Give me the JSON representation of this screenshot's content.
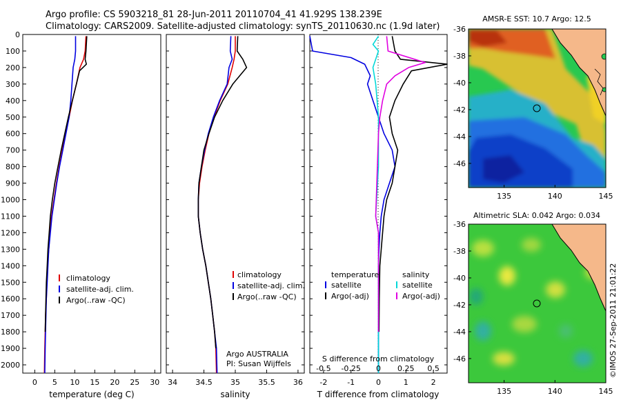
{
  "header": {
    "line1": "Argo profile: CS 5903218_81 28-Jun-2011 20110704_41 41.929S 138.239E",
    "line2": "Climatology: CARS2009. Satellite-adjusted climatology: synTS_20110630.nc (1.9d later)"
  },
  "depth_ticks": [
    "0",
    "100",
    "200",
    "300",
    "400",
    "500",
    "600",
    "700",
    "800",
    "900",
    "1000",
    "1100",
    "1200",
    "1300",
    "1400",
    "1500",
    "1600",
    "1700",
    "1800",
    "1900",
    "2000"
  ],
  "colors": {
    "climatology": "#e00000",
    "satellite": "#0000e0",
    "argo": "#000000",
    "cyan": "#00d8d8",
    "magenta": "#e000e0",
    "land": "#f5b88a"
  },
  "panels": {
    "temperature": {
      "xlabel": "temperature (deg C)",
      "xticks": [
        "0",
        "5",
        "10",
        "15",
        "20",
        "25",
        "30"
      ],
      "legend": [
        "climatology",
        "satellite-adj. clim.",
        "Argo(..raw -QC)"
      ]
    },
    "salinity": {
      "xlabel": "salinity",
      "xticks": [
        "34",
        "34.5",
        "35",
        "35.5",
        "36"
      ],
      "legend": [
        "climatology",
        "satellite-adj. clim.",
        "Argo(..raw -QC)"
      ],
      "note1": "Argo AUSTRALIA",
      "note2": "PI: Susan Wijffels"
    },
    "difference": {
      "xlabel": "T difference from climatology",
      "top_label": "S difference from climatology",
      "s_ticks": [
        "-0.5",
        "-0.25",
        "0",
        "0.25",
        "0.5"
      ],
      "t_ticks": [
        "-2",
        "-1",
        "0",
        "1",
        "2"
      ],
      "legend_temp_title": "temperature",
      "legend_sal_title": "salinity",
      "legend_temp": [
        "satellite",
        "Argo(-adj)"
      ],
      "legend_sal": [
        "satellite",
        "Argo(-adj)"
      ]
    }
  },
  "maps": {
    "sst": {
      "title": "AMSR-E SST: 10.7 Argo: 12.5",
      "yticks": [
        "-36",
        "-38",
        "-40",
        "-42",
        "-44",
        "-46"
      ],
      "xticks": [
        "135",
        "140",
        "145"
      ]
    },
    "sla": {
      "title": "Altimetric SLA: 0.042 Argo: 0.034",
      "yticks": [
        "-36",
        "-38",
        "-40",
        "-42",
        "-44",
        "-46"
      ],
      "xticks": [
        "135",
        "140",
        "145"
      ]
    }
  },
  "watermark": "©IMOS 27-Sep-2011 21:01:22",
  "chart_data": [
    {
      "type": "line",
      "panel": "temperature",
      "xlabel": "temperature (deg C)",
      "ylabel": "",
      "xlim": [
        -3,
        31.5
      ],
      "ylim": [
        2050,
        0
      ],
      "series": [
        {
          "name": "climatology",
          "color": "#e00000",
          "x": [
            12.8,
            12.6,
            12.2,
            11.3,
            10.4,
            9.4,
            8.6,
            7.7,
            6.9,
            6.1,
            5.4,
            4.8,
            4.2,
            3.8,
            3.5,
            3.2,
            3.0,
            2.9,
            2.7,
            2.6,
            2.5,
            2.4
          ],
          "y": [
            10,
            100,
            150,
            200,
            300,
            400,
            500,
            600,
            700,
            800,
            900,
            1000,
            1100,
            1200,
            1300,
            1400,
            1500,
            1600,
            1700,
            1800,
            1900,
            2050
          ]
        },
        {
          "name": "satellite-adj. clim.",
          "color": "#0000e0",
          "x": [
            10.2,
            10.2,
            10.0,
            9.6,
            9.3,
            9.0,
            8.6,
            7.8,
            7.0,
            6.2,
            5.5,
            4.9,
            4.3,
            3.9,
            3.5,
            3.3,
            3.1,
            2.9,
            2.8,
            2.7,
            2.6,
            2.5
          ],
          "y": [
            10,
            100,
            150,
            200,
            300,
            400,
            500,
            600,
            700,
            800,
            900,
            1000,
            1100,
            1200,
            1300,
            1400,
            1500,
            1600,
            1700,
            1800,
            1900,
            2050
          ]
        },
        {
          "name": "Argo(..raw -QC)",
          "color": "#000000",
          "x": [
            13.0,
            12.8,
            12.6,
            12.9,
            11.2,
            10.4,
            9.4,
            8.4,
            7.5,
            6.6,
            5.8,
            5.0,
            4.4,
            3.9,
            3.6,
            3.3,
            3.1,
            2.9,
            2.8,
            2.7,
            2.6
          ],
          "y": [
            10,
            100,
            150,
            180,
            220,
            300,
            400,
            500,
            600,
            700,
            800,
            900,
            1000,
            1100,
            1200,
            1300,
            1400,
            1500,
            1600,
            1700,
            1800
          ]
        }
      ]
    },
    {
      "type": "line",
      "panel": "salinity",
      "xlabel": "salinity",
      "ylabel": "",
      "xlim": [
        33.9,
        36.1
      ],
      "ylim": [
        2050,
        0
      ],
      "series": [
        {
          "name": "climatology",
          "color": "#e00000",
          "x": [
            35.0,
            35.0,
            34.98,
            34.95,
            34.88,
            34.76,
            34.66,
            34.58,
            34.52,
            34.47,
            34.43,
            34.41,
            34.41,
            34.44,
            34.48,
            34.53,
            34.57,
            34.61,
            34.64,
            34.67,
            34.69,
            34.7
          ],
          "y": [
            10,
            100,
            150,
            200,
            300,
            400,
            500,
            600,
            700,
            800,
            900,
            1000,
            1100,
            1200,
            1300,
            1400,
            1500,
            1600,
            1700,
            1800,
            1900,
            2050
          ]
        },
        {
          "name": "satellite-adj. clim.",
          "color": "#0000e0",
          "x": [
            34.93,
            34.92,
            34.95,
            34.9,
            34.87,
            34.75,
            34.65,
            34.57,
            34.51,
            34.46,
            34.42,
            34.41,
            34.41,
            34.44,
            34.48,
            34.53,
            34.57,
            34.61,
            34.64,
            34.67,
            34.7,
            34.71
          ],
          "y": [
            10,
            100,
            150,
            200,
            300,
            400,
            500,
            600,
            700,
            800,
            900,
            1000,
            1100,
            1200,
            1300,
            1400,
            1500,
            1600,
            1700,
            1800,
            1900,
            2050
          ]
        },
        {
          "name": "Argo(..raw -QC)",
          "color": "#000000",
          "x": [
            35.04,
            35.03,
            35.12,
            35.18,
            34.96,
            34.8,
            34.67,
            34.58,
            34.5,
            34.46,
            34.42,
            34.41,
            34.41,
            34.44,
            34.48,
            34.53,
            34.57,
            34.61,
            34.64,
            34.67,
            34.69
          ],
          "y": [
            10,
            100,
            150,
            200,
            300,
            400,
            500,
            600,
            700,
            800,
            900,
            1000,
            1100,
            1200,
            1300,
            1400,
            1500,
            1600,
            1700,
            1800,
            1900
          ]
        }
      ]
    },
    {
      "type": "line",
      "panel": "difference",
      "xlabel": "T difference from climatology",
      "top_xlabel": "S difference from climatology",
      "xlim": [
        -2.5,
        2.5
      ],
      "ylim": [
        2050,
        0
      ],
      "series": [
        {
          "name": "satellite",
          "group": "temperature",
          "color": "#0000e0",
          "x": [
            -2.6,
            -2.4,
            -1.0,
            -0.5,
            -0.3,
            -0.4,
            -0.2,
            0.0,
            0.2,
            0.5,
            0.6,
            0.4,
            0.2,
            0.1,
            0.05,
            0.02,
            0.0,
            0.0,
            0.0,
            0.0,
            0.0
          ],
          "y": [
            10,
            100,
            140,
            180,
            250,
            300,
            400,
            500,
            600,
            700,
            800,
            900,
            1000,
            1100,
            1200,
            1300,
            1400,
            1500,
            1600,
            1800,
            2050
          ]
        },
        {
          "name": "Argo(-adj)",
          "group": "temperature",
          "color": "#000000",
          "x": [
            0.5,
            0.6,
            0.8,
            2.7,
            1.2,
            0.9,
            0.6,
            0.4,
            0.5,
            0.7,
            0.6,
            0.5,
            0.3,
            0.2,
            0.15,
            0.1,
            0.05,
            0.03,
            0.02
          ],
          "y": [
            10,
            100,
            150,
            180,
            220,
            300,
            400,
            500,
            600,
            700,
            800,
            900,
            1000,
            1100,
            1200,
            1300,
            1400,
            1600,
            1800
          ]
        },
        {
          "name": "satellite",
          "group": "salinity",
          "color": "#00d8d8",
          "x": [
            0.0,
            -0.2,
            0.0,
            -0.2,
            -0.1,
            -0.05,
            0.0,
            0.0,
            0.0,
            -0.1,
            0.0,
            0.0,
            0.0,
            0.0,
            0.0
          ],
          "y": [
            10,
            60,
            100,
            200,
            300,
            400,
            500,
            600,
            800,
            1100,
            1200,
            1400,
            1600,
            1800,
            2050
          ]
        },
        {
          "name": "Argo(-adj)",
          "group": "salinity",
          "color": "#e000e0",
          "x": [
            0.3,
            0.35,
            1.7,
            1.1,
            0.6,
            0.3,
            0.15,
            0.05,
            0.0,
            -0.1,
            0.0,
            0.0,
            0.0,
            0.0
          ],
          "y": [
            10,
            100,
            170,
            200,
            250,
            300,
            400,
            500,
            600,
            1100,
            1200,
            1400,
            1600,
            1800
          ]
        }
      ]
    },
    {
      "type": "heatmap",
      "panel": "map-sst",
      "title": "AMSR-E SST: 10.7 Argo: 12.5",
      "xlim": [
        131.5,
        145
      ],
      "ylim": [
        -47.8,
        -36
      ],
      "marker": {
        "lon": 138.239,
        "lat": -41.929
      }
    },
    {
      "type": "heatmap",
      "panel": "map-sla",
      "title": "Altimetric SLA: 0.042 Argo: 0.034",
      "xlim": [
        131.5,
        145
      ],
      "ylim": [
        -47.8,
        -36
      ],
      "marker": {
        "lon": 138.239,
        "lat": -41.929
      }
    }
  ]
}
